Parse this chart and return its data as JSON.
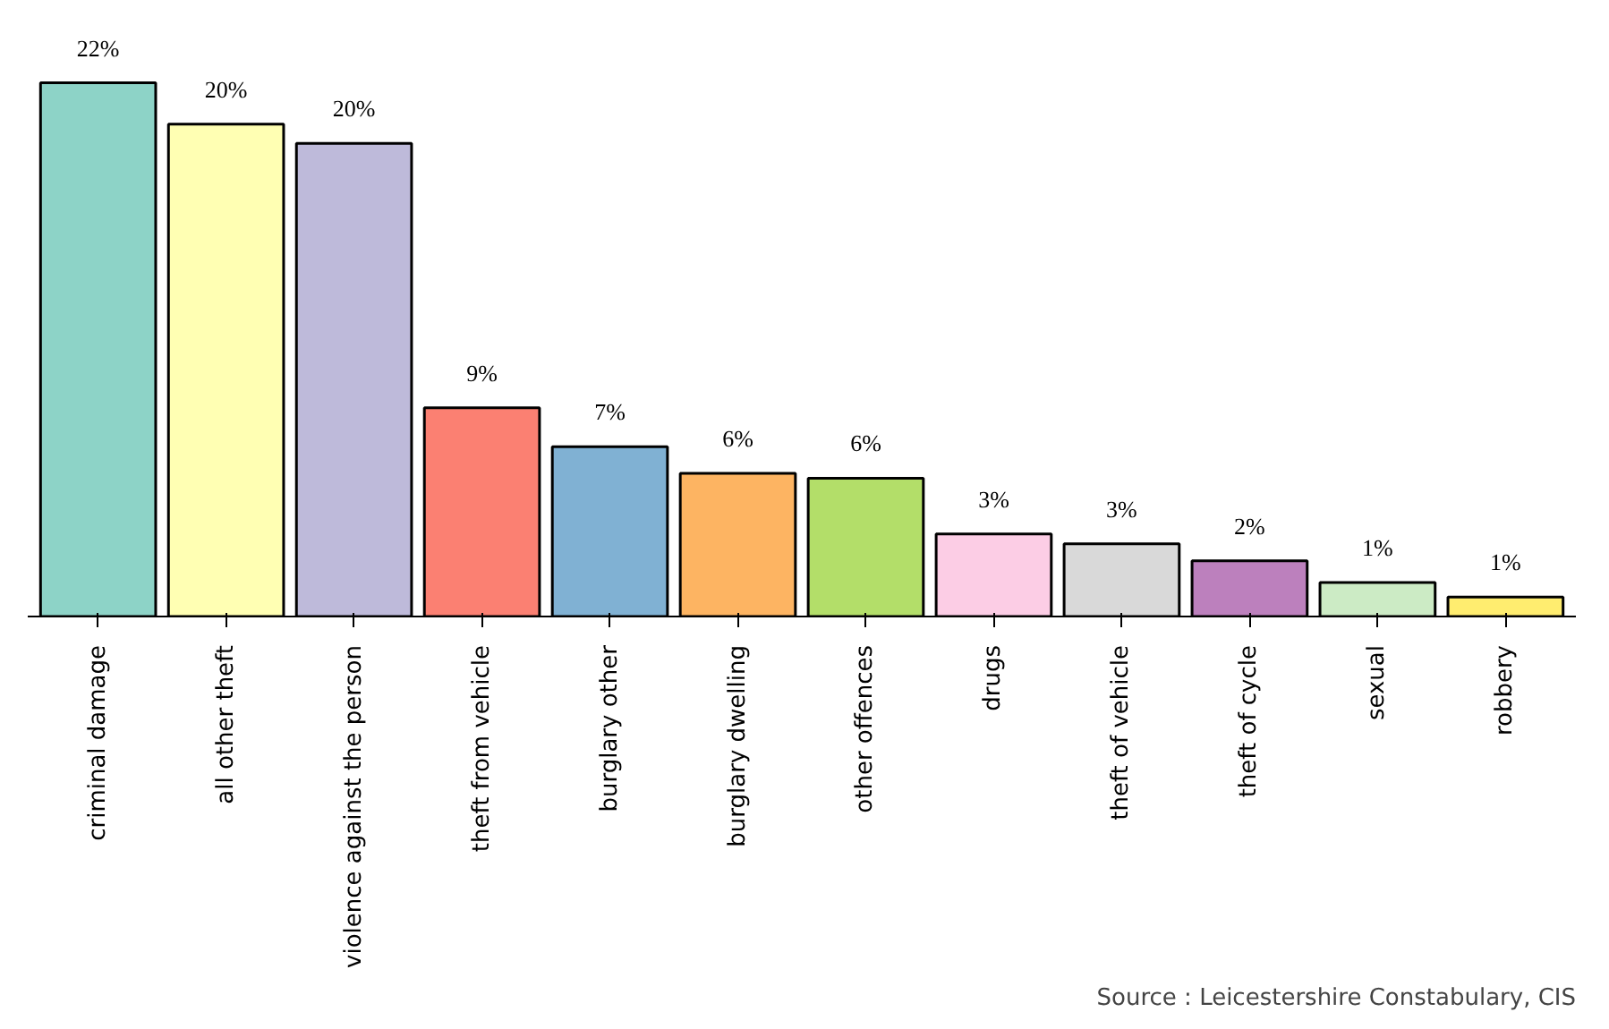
{
  "chart_data": {
    "type": "bar",
    "categories": [
      "criminal damage",
      "all other theft",
      "violence against the person",
      "theft from vehicle",
      "burglary other",
      "burglary dwelling",
      "other offences",
      "drugs",
      "theft of vehicle",
      "theft of cycle",
      "sexual",
      "robbery"
    ],
    "values": [
      22,
      20.3,
      19.5,
      8.6,
      7.0,
      5.9,
      5.7,
      3.4,
      3.0,
      2.3,
      1.4,
      0.8
    ],
    "value_labels": [
      "22%",
      "20%",
      "20%",
      "9%",
      "7%",
      "6%",
      "6%",
      "3%",
      "3%",
      "2%",
      "1%",
      "1%"
    ],
    "colors": [
      "#8dd3c7",
      "#ffffb3",
      "#bebada",
      "#fb8072",
      "#80b1d3",
      "#fdb462",
      "#b3de69",
      "#fccde5",
      "#d9d9d9",
      "#bc80bd",
      "#ccebc5",
      "#ffed6f"
    ],
    "annotations": [
      "Source : Leicestershire Constabulary, CIS"
    ],
    "grid": false
  }
}
